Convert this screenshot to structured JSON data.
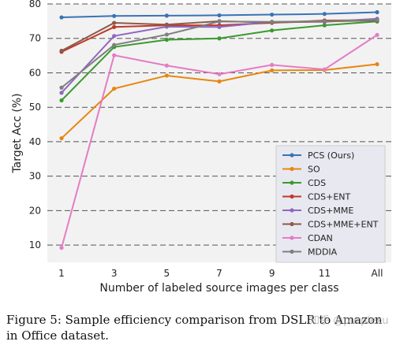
{
  "chart_data": {
    "type": "line",
    "categories": [
      "1",
      "3",
      "5",
      "7",
      "9",
      "11",
      "All"
    ],
    "xlabel": "Number of labeled source images per class",
    "ylabel": "Target Acc (%)",
    "ylim": [
      5,
      80
    ],
    "yticks": [
      10,
      20,
      30,
      40,
      50,
      60,
      70,
      80
    ],
    "grid": "horizontal dashed",
    "legend_position": "lower-right",
    "series": [
      {
        "name": "PCS (Ours)",
        "color": "#3a73b5",
        "values": [
          76.1,
          76.5,
          76.6,
          76.7,
          76.9,
          77.1,
          77.6
        ]
      },
      {
        "name": "SO",
        "color": "#e6870f",
        "values": [
          41.0,
          55.4,
          59.2,
          57.5,
          60.7,
          60.8,
          62.5
        ]
      },
      {
        "name": "CDS",
        "color": "#3a9a2e",
        "values": [
          52.0,
          67.5,
          69.6,
          70.0,
          72.3,
          73.8,
          74.9
        ]
      },
      {
        "name": "CDS+ENT",
        "color": "#c0392b",
        "values": [
          66.1,
          73.3,
          73.8,
          73.8,
          74.5,
          75.2,
          75.3
        ]
      },
      {
        "name": "CDS+MME",
        "color": "#9067c0",
        "values": [
          54.2,
          70.7,
          73.4,
          73.3,
          74.8,
          74.8,
          75.7
        ]
      },
      {
        "name": "CDS+MME+ENT",
        "color": "#8c5a4a",
        "values": [
          66.4,
          74.5,
          74.0,
          75.0,
          74.6,
          74.9,
          75.2
        ]
      },
      {
        "name": "CDAN",
        "color": "#e57cc4",
        "values": [
          9.2,
          65.1,
          62.1,
          59.6,
          62.3,
          61.0,
          71.0
        ]
      },
      {
        "name": "MDDIA",
        "color": "#7f7f7f",
        "values": [
          55.7,
          68.1,
          71.1,
          74.9,
          74.8,
          75.0,
          75.4
        ]
      }
    ]
  },
  "caption": {
    "text": "Figure 5: Sample efficiency comparison from DSLR to Amazon in Office dataset."
  },
  "watermark": "知乎 @purplexu"
}
